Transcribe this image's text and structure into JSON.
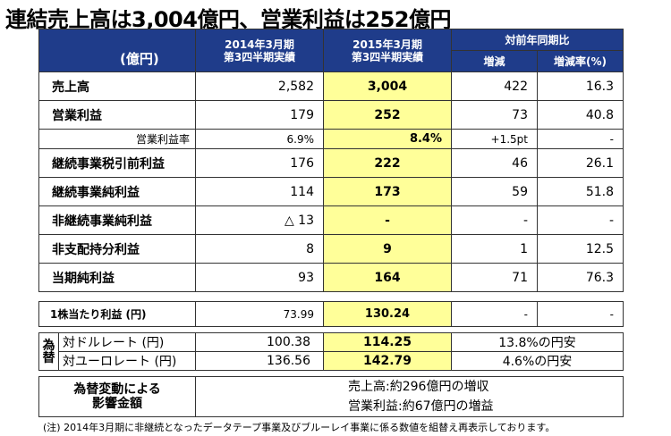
{
  "title": "連結売上高は3,004億円、営業利益は252億円",
  "header": {
    "unit": "(億円)",
    "col_prev_line1": "2014年3月期",
    "col_prev_line2": "第3四半期実績",
    "col_curr_line1": "2015年3月期",
    "col_curr_line2": "第3四半期実績",
    "col_yoy": "対前年同期比",
    "col_diff": "増減",
    "col_rate": "増減率(%)"
  },
  "rows": [
    {
      "label": "売上高",
      "prev": "2,582",
      "curr": "3,004",
      "diff": "422",
      "rate": "16.3"
    },
    {
      "label": "営業利益",
      "prev": "179",
      "curr": "252",
      "diff": "73",
      "rate": "40.8"
    },
    {
      "label": "営業利益率",
      "prev": "6.9%",
      "curr": "8.4%",
      "diff": "+1.5pt",
      "rate": "-",
      "small": true
    },
    {
      "label": "継続事業税引前利益",
      "prev": "176",
      "curr": "222",
      "diff": "46",
      "rate": "26.1"
    },
    {
      "label": "継続事業純利益",
      "prev": "114",
      "curr": "173",
      "diff": "59",
      "rate": "51.8"
    },
    {
      "label": "非継続事業純利益",
      "prev": "△ 13",
      "curr": "-",
      "diff": "-",
      "rate": "-"
    },
    {
      "label": "非支配持分利益",
      "prev": "8",
      "curr": "9",
      "diff": "1",
      "rate": "12.5"
    },
    {
      "label": "当期純利益",
      "prev": "93",
      "curr": "164",
      "diff": "71",
      "rate": "76.3"
    }
  ],
  "eps": {
    "label": "1株当たり利益 (円)",
    "prev": "73.99",
    "curr": "130.24",
    "diff": "-",
    "rate": "-"
  },
  "fx": {
    "side_line1": "為",
    "side_line2": "替",
    "usd": {
      "label": "対ドルレート (円)",
      "prev": "100.38",
      "curr": "114.25",
      "cmp": "13.8%の円安"
    },
    "eur": {
      "label": "対ユーロレート (円)",
      "prev": "136.56",
      "curr": "142.79",
      "cmp": "4.6%の円安"
    }
  },
  "impact": {
    "label_line1": "為替変動による",
    "label_line2": "影響金額",
    "line1": "売上高:約296億円の増収",
    "line2": "営業利益:約67億円の増益"
  },
  "note": "(注) 2014年3月期に非継続となったデータテープ事業及びブルーレイ事業に係る数値を組替え再表示しております。"
}
